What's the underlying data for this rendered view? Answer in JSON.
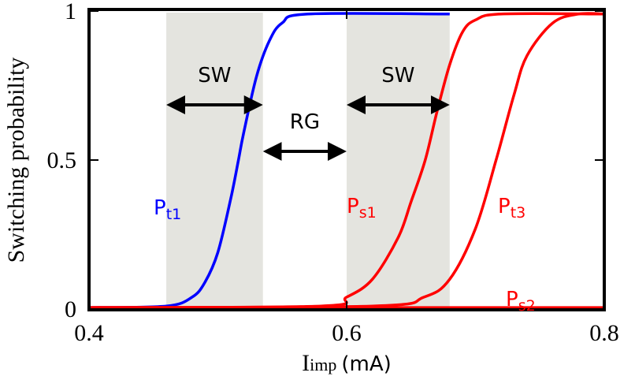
{
  "chart_data": {
    "type": "line",
    "xlabel": {
      "main": "I",
      "sub": "imp",
      "unit": "(mA)"
    },
    "ylabel": "Switching probability",
    "xlim": [
      0.4,
      0.8
    ],
    "ylim": [
      0,
      1
    ],
    "xticks": [
      0.4,
      0.6,
      0.8
    ],
    "yticks": [
      0,
      0.5,
      1
    ],
    "shaded_regions": [
      [
        0.46,
        0.535
      ],
      [
        0.6,
        0.68
      ]
    ],
    "annotations": [
      "SW",
      "RG",
      "SW"
    ],
    "series": [
      {
        "name": {
          "main": "P",
          "sub": "t1"
        },
        "color": "#0000ff",
        "x": [
          0.4,
          0.46,
          0.48,
          0.49,
          0.5,
          0.51,
          0.516,
          0.52,
          0.53,
          0.54,
          0.55,
          0.57,
          0.68
        ],
        "values": [
          0.005,
          0.01,
          0.04,
          0.09,
          0.19,
          0.37,
          0.5,
          0.59,
          0.78,
          0.9,
          0.96,
          0.99,
          0.99
        ]
      },
      {
        "name": {
          "main": "P",
          "sub": "s1"
        },
        "color": "#ff0000",
        "x": [
          0.4,
          0.58,
          0.6,
          0.62,
          0.64,
          0.65,
          0.661,
          0.67,
          0.68,
          0.69,
          0.7,
          0.72,
          0.8
        ],
        "values": [
          0.005,
          0.01,
          0.04,
          0.1,
          0.24,
          0.36,
          0.5,
          0.66,
          0.82,
          0.93,
          0.97,
          0.99,
          0.99
        ]
      },
      {
        "name": {
          "main": "P",
          "sub": "t3"
        },
        "color": "#ff0000",
        "x": [
          0.4,
          0.62,
          0.66,
          0.68,
          0.7,
          0.716,
          0.73,
          0.74,
          0.76,
          0.78,
          0.8
        ],
        "values": [
          0.005,
          0.01,
          0.04,
          0.1,
          0.27,
          0.5,
          0.72,
          0.85,
          0.96,
          0.99,
          0.99
        ]
      },
      {
        "name": {
          "main": "P",
          "sub": "s2"
        },
        "color": "#ff0000",
        "x": [
          0.4,
          0.8
        ],
        "values": [
          0.005,
          0.005
        ]
      }
    ]
  }
}
